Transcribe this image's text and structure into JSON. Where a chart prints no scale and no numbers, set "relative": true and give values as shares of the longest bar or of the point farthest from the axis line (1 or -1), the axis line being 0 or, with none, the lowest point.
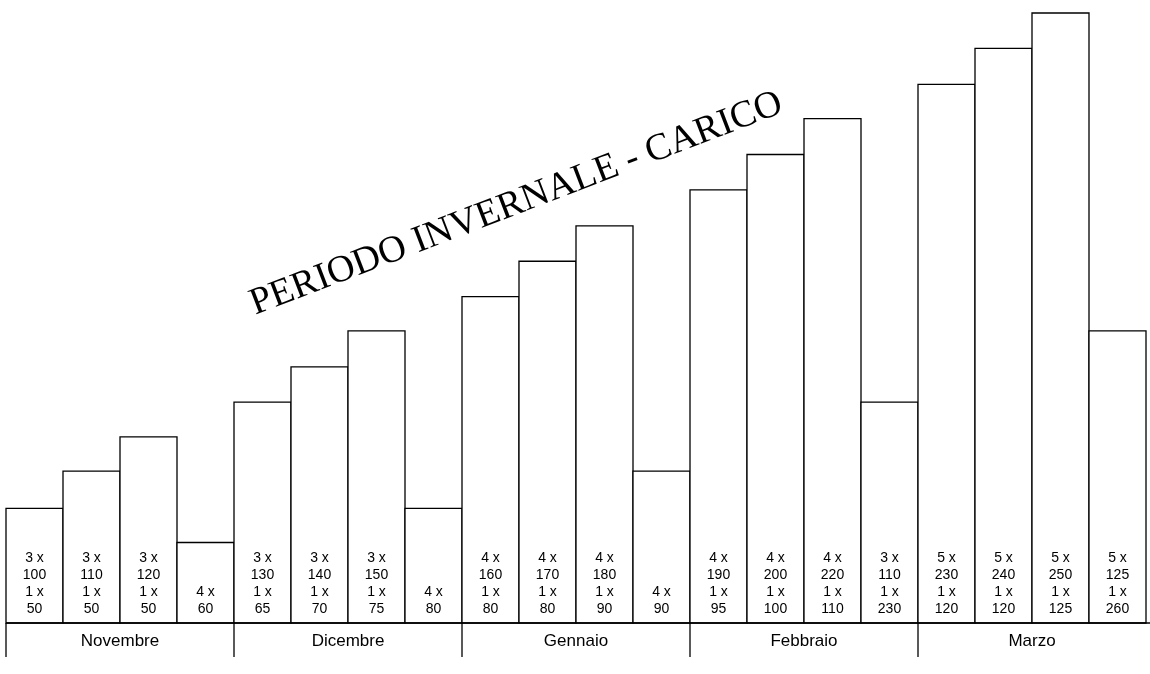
{
  "chart_data": {
    "type": "bar",
    "title": "PERIODO INVERNALE - CARICO",
    "relative": true,
    "color": "#ffffff",
    "categories": [
      "3 x\n100\n1 x\n50",
      "3 x\n110\n1 x\n50",
      "3 x\n120\n1 x\n50",
      "4 x\n60",
      "3 x\n130\n1 x\n65",
      "3 x\n140\n1 x\n70",
      "3 x\n150\n1 x\n75",
      "4 x\n80",
      "4 x\n160\n1 x\n80",
      "4 x\n170\n1 x\n80",
      "4 x\n180\n1 x\n90",
      "4 x\n90",
      "4 x\n190\n1 x\n95",
      "4 x\n200\n1 x\n100",
      "4 x\n220\n1 x\n110",
      "3 x\n110\n1 x\n230",
      "5 x\n230\n1 x\n120",
      "5 x\n240\n1 x\n120",
      "5 x\n250\n1 x\n125",
      "5 x\n125\n1 x\n260"
    ],
    "values": [
      0.188,
      0.249,
      0.305,
      0.132,
      0.362,
      0.42,
      0.479,
      0.188,
      0.535,
      0.593,
      0.651,
      0.249,
      0.71,
      0.768,
      0.827,
      0.362,
      0.883,
      0.942,
      1,
      0.479
    ],
    "annotations": [
      "Novembre",
      "Dicembre",
      "Gennaio",
      "Febbraio",
      "Marzo"
    ]
  }
}
